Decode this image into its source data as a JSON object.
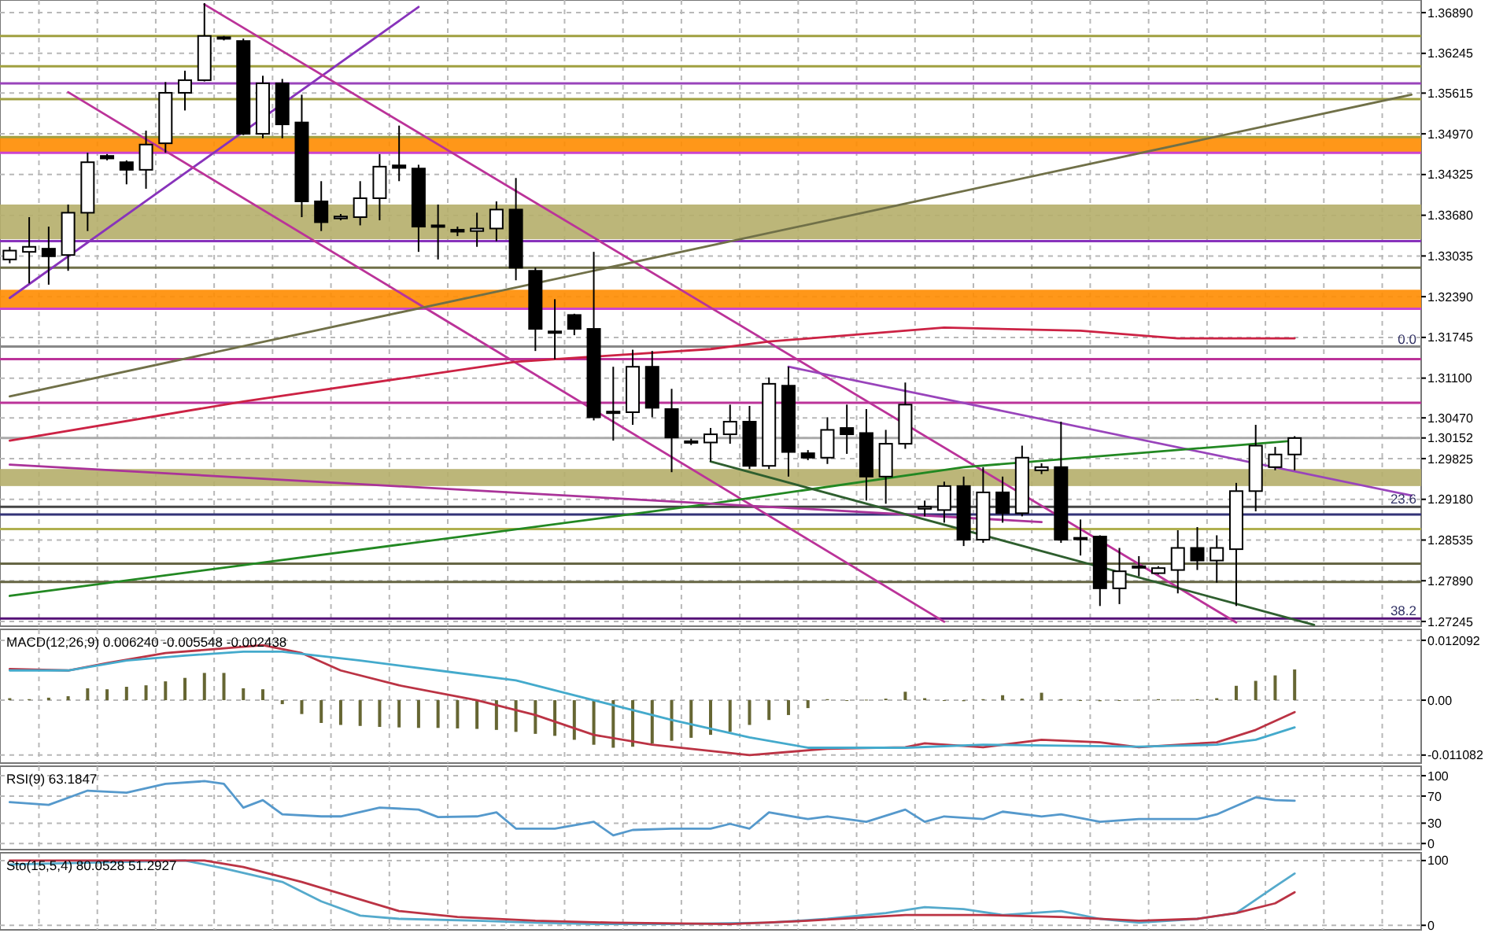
{
  "chart_data": [
    {
      "type": "candlestick",
      "categories": [
        null,
        null,
        null,
        null,
        null,
        null,
        null,
        null,
        null,
        null,
        null,
        null,
        null,
        null,
        null,
        null,
        null,
        null,
        null,
        null,
        null,
        null,
        null,
        null,
        null,
        null,
        null,
        null,
        null,
        null,
        null,
        null,
        null,
        null,
        null,
        null,
        null,
        null,
        null,
        null,
        null,
        null,
        null,
        null,
        null,
        null,
        null,
        null,
        null,
        null,
        null,
        null,
        null,
        null,
        null,
        null,
        null,
        null,
        null,
        null,
        null,
        null,
        null,
        null,
        null,
        null,
        null,
        null,
        null,
        null,
        null,
        null,
        null
      ],
      "ohlc": [
        [
          1.3298,
          1.3318,
          1.3292,
          1.3312
        ],
        [
          1.331,
          1.3365,
          1.326,
          1.3318
        ],
        [
          1.3315,
          1.335,
          1.3258,
          1.3303
        ],
        [
          1.3305,
          1.3385,
          1.328,
          1.3372
        ],
        [
          1.3372,
          1.3467,
          1.3343,
          1.3452
        ],
        [
          1.3462,
          1.3465,
          1.3455,
          1.3458
        ],
        [
          1.3452,
          1.3455,
          1.3417,
          1.344
        ],
        [
          1.344,
          1.3502,
          1.341,
          1.348
        ],
        [
          1.3482,
          1.3579,
          1.3467,
          1.3562
        ],
        [
          1.3562,
          1.3597,
          1.3534,
          1.3582
        ],
        [
          1.3582,
          1.3704,
          1.358,
          1.3652
        ],
        [
          1.365,
          1.3652,
          1.3645,
          1.3648
        ],
        [
          1.3644,
          1.3648,
          1.3495,
          1.3497
        ],
        [
          1.3497,
          1.3589,
          1.349,
          1.3577
        ],
        [
          1.3577,
          1.3584,
          1.349,
          1.3512
        ],
        [
          1.3515,
          1.3559,
          1.3365,
          1.339
        ],
        [
          1.339,
          1.3422,
          1.3343,
          1.3357
        ],
        [
          1.3363,
          1.337,
          1.336,
          1.3366
        ],
        [
          1.3365,
          1.3422,
          1.3352,
          1.3395
        ],
        [
          1.3395,
          1.3465,
          1.336,
          1.3445
        ],
        [
          1.3447,
          1.351,
          1.3422,
          1.3443
        ],
        [
          1.3442,
          1.3448,
          1.331,
          1.335
        ],
        [
          1.3352,
          1.3385,
          1.3298,
          1.335
        ],
        [
          1.3345,
          1.335,
          1.3335,
          1.3342
        ],
        [
          1.3343,
          1.3372,
          1.3318,
          1.3347
        ],
        [
          1.3347,
          1.339,
          1.3327,
          1.3377
        ],
        [
          1.3377,
          1.3427,
          1.3265,
          1.3285
        ],
        [
          1.328,
          1.3285,
          1.3153,
          1.3188
        ],
        [
          1.3184,
          1.3235,
          1.314,
          1.3182
        ],
        [
          1.321,
          1.3212,
          1.3178,
          1.3188
        ],
        [
          1.3188,
          1.331,
          1.3043,
          1.3048
        ],
        [
          1.3055,
          1.3128,
          1.3011,
          1.3057
        ],
        [
          1.3056,
          1.3155,
          1.3036,
          1.3128
        ],
        [
          1.3128,
          1.3153,
          1.3048,
          1.3063
        ],
        [
          1.3061,
          1.3093,
          1.2961,
          1.3016
        ],
        [
          1.3008,
          1.3014,
          1.3004,
          1.301
        ],
        [
          1.3008,
          1.3031,
          1.2978,
          1.3021
        ],
        [
          1.3021,
          1.3068,
          1.3006,
          1.3041
        ],
        [
          1.3041,
          1.3066,
          1.2966,
          1.2971
        ],
        [
          1.2971,
          1.3111,
          1.2966,
          1.3101
        ],
        [
          1.3098,
          1.3128,
          1.2954,
          1.2993
        ],
        [
          1.2991,
          1.2996,
          1.298,
          1.2984
        ],
        [
          1.2984,
          1.3048,
          1.2974,
          1.3028
        ],
        [
          1.3031,
          1.3068,
          1.299,
          1.3021
        ],
        [
          1.3023,
          1.3061,
          1.2916,
          1.2954
        ],
        [
          1.2954,
          1.3028,
          1.2911,
          1.3006
        ],
        [
          1.3006,
          1.3103,
          1.2998,
          1.3068
        ],
        [
          1.2903,
          1.2916,
          1.2891,
          1.2906
        ],
        [
          1.2901,
          1.2946,
          1.2881,
          1.2939
        ],
        [
          1.2939,
          1.2954,
          1.2844,
          1.2854
        ],
        [
          1.2854,
          1.2969,
          1.2849,
          1.2929
        ],
        [
          1.2929,
          1.2954,
          1.2881,
          1.2896
        ],
        [
          1.2896,
          1.3003,
          1.2891,
          1.2984
        ],
        [
          1.2964,
          1.2975,
          1.2958,
          1.2969
        ],
        [
          1.2969,
          1.3041,
          1.2849,
          1.2854
        ],
        [
          1.2855,
          1.2886,
          1.2829,
          1.2857
        ],
        [
          1.2859,
          1.2861,
          1.2749,
          1.2777
        ],
        [
          1.2777,
          1.2841,
          1.2752,
          1.2804
        ],
        [
          1.281,
          1.2828,
          1.2796,
          1.2812
        ],
        [
          1.2801,
          1.2812,
          1.2799,
          1.2809
        ],
        [
          1.2806,
          1.2869,
          1.2769,
          1.2841
        ],
        [
          1.2841,
          1.2874,
          1.2806,
          1.2821
        ],
        [
          1.2821,
          1.2861,
          1.2786,
          1.2841
        ],
        [
          1.2839,
          1.2944,
          1.2749,
          1.2931
        ],
        [
          1.2931,
          1.3036,
          1.2899,
          1.3003
        ],
        [
          1.2969,
          1.3001,
          1.2964,
          1.2989
        ],
        [
          1.2989,
          1.3018,
          1.2964,
          1.3015
        ],
        null,
        null,
        null,
        null,
        null,
        null
      ],
      "series": [
        {
          "type": "line",
          "color": "#8833bb",
          "values": [
            1.3237,
            null,
            null,
            null,
            null,
            null,
            null,
            null,
            null,
            null,
            null,
            null,
            null,
            null,
            null,
            null,
            null,
            null,
            null,
            null,
            null,
            1.3698,
            null,
            null,
            null,
            null,
            null,
            null,
            null,
            null,
            null,
            null,
            null,
            null,
            null,
            null,
            null,
            null,
            null,
            null,
            null,
            null,
            null,
            null,
            null,
            null,
            null,
            null,
            null,
            null,
            null,
            null,
            null,
            null,
            null,
            null,
            null,
            null,
            null,
            null,
            null,
            null,
            null,
            null,
            null,
            null,
            null,
            null,
            null,
            null,
            null,
            null,
            null
          ]
        },
        {
          "type": "line",
          "color": "#bb3399",
          "values": [
            null,
            null,
            null,
            null,
            null,
            null,
            null,
            null,
            null,
            null,
            1.3702,
            null,
            null,
            null,
            null,
            null,
            null,
            null,
            null,
            null,
            null,
            null,
            null,
            null,
            null,
            null,
            null,
            null,
            null,
            null,
            null,
            null,
            null,
            null,
            null,
            null,
            null,
            null,
            null,
            null,
            null,
            null,
            null,
            null,
            null,
            null,
            null,
            null,
            null,
            null,
            null,
            null,
            null,
            null,
            null,
            null,
            null,
            null,
            null,
            null,
            null,
            null,
            null,
            1.2723,
            null,
            null,
            null,
            null,
            null,
            null,
            null,
            null,
            null
          ]
        },
        {
          "type": "line",
          "color": "#bb3399",
          "values": [
            null,
            null,
            null,
            1.3563,
            null,
            null,
            null,
            null,
            null,
            null,
            null,
            null,
            null,
            null,
            null,
            null,
            null,
            null,
            null,
            null,
            null,
            null,
            null,
            null,
            null,
            null,
            null,
            null,
            null,
            null,
            null,
            null,
            null,
            null,
            null,
            null,
            null,
            null,
            null,
            null,
            null,
            null,
            null,
            null,
            null,
            null,
            null,
            null,
            1.2724,
            null,
            null,
            null,
            null,
            null,
            null,
            null,
            null,
            null,
            null,
            null,
            null,
            null,
            null,
            null,
            null,
            null,
            null,
            null,
            null,
            null,
            null,
            null,
            null
          ]
        },
        {
          "type": "line",
          "color": "#707048",
          "values": [
            1.3081,
            null,
            null,
            null,
            null,
            null,
            null,
            null,
            null,
            null,
            null,
            null,
            null,
            null,
            null,
            null,
            null,
            null,
            null,
            null,
            null,
            null,
            null,
            null,
            null,
            null,
            null,
            null,
            null,
            null,
            null,
            null,
            null,
            null,
            null,
            null,
            null,
            null,
            null,
            null,
            null,
            null,
            null,
            null,
            null,
            null,
            null,
            null,
            null,
            null,
            null,
            null,
            null,
            null,
            null,
            null,
            null,
            null,
            null,
            null,
            null,
            null,
            null,
            null,
            null,
            null,
            null,
            null,
            null,
            null,
            null,
            null,
            1.3559
          ]
        },
        {
          "type": "line",
          "color": "#9944bb",
          "values": [
            null,
            null,
            null,
            null,
            null,
            null,
            null,
            null,
            null,
            null,
            null,
            null,
            null,
            null,
            null,
            null,
            null,
            null,
            null,
            null,
            null,
            null,
            null,
            null,
            null,
            null,
            null,
            null,
            null,
            null,
            null,
            null,
            null,
            null,
            null,
            null,
            null,
            null,
            null,
            null,
            1.3128,
            null,
            null,
            null,
            null,
            null,
            null,
            null,
            null,
            null,
            null,
            null,
            null,
            null,
            null,
            null,
            null,
            null,
            null,
            null,
            null,
            null,
            null,
            null,
            null,
            null,
            null,
            null,
            null,
            null,
            null,
            null,
            1.2924
          ]
        },
        {
          "type": "line",
          "color": "#cc2244",
          "values": [
            1.3011,
            null,
            null,
            null,
            null,
            null,
            null,
            null,
            null,
            null,
            null,
            null,
            1.3073,
            null,
            null,
            null,
            null,
            null,
            null,
            null,
            null,
            null,
            null,
            null,
            null,
            null,
            1.3136,
            null,
            null,
            null,
            null,
            null,
            null,
            null,
            null,
            null,
            1.3156,
            null,
            null,
            1.3168,
            null,
            null,
            null,
            null,
            null,
            null,
            null,
            null,
            1.319,
            null,
            null,
            null,
            null,
            null,
            null,
            1.3185,
            null,
            null,
            null,
            null,
            1.3173,
            null,
            null,
            null,
            null,
            null,
            1.3173,
            null,
            null,
            null,
            null,
            null,
            null
          ]
        },
        {
          "type": "line",
          "color": "#228822",
          "values": [
            1.2765,
            null,
            null,
            null,
            null,
            null,
            null,
            null,
            null,
            null,
            null,
            null,
            null,
            null,
            null,
            null,
            null,
            null,
            null,
            null,
            null,
            null,
            null,
            null,
            null,
            null,
            null,
            null,
            null,
            null,
            null,
            null,
            null,
            null,
            null,
            null,
            1.2911,
            null,
            null,
            null,
            null,
            null,
            null,
            null,
            null,
            null,
            null,
            null,
            null,
            1.2969,
            null,
            null,
            null,
            null,
            null,
            null,
            null,
            null,
            null,
            null,
            null,
            null,
            null,
            null,
            null,
            null,
            1.3011,
            null,
            null,
            null,
            null,
            null,
            null
          ]
        },
        {
          "type": "line",
          "color": "#aa3399",
          "values": [
            1.2973,
            null,
            null,
            null,
            null,
            null,
            null,
            null,
            null,
            null,
            null,
            null,
            null,
            null,
            null,
            null,
            null,
            null,
            null,
            null,
            null,
            null,
            null,
            null,
            null,
            null,
            null,
            null,
            null,
            null,
            null,
            null,
            null,
            null,
            null,
            null,
            null,
            null,
            null,
            null,
            null,
            null,
            null,
            null,
            null,
            null,
            null,
            null,
            null,
            null,
            null,
            null,
            null,
            1.2882,
            null,
            null,
            null,
            null,
            null,
            null,
            null,
            null,
            null,
            null,
            null,
            null,
            null,
            null,
            null,
            null,
            null,
            null,
            null
          ]
        },
        {
          "type": "line",
          "color": "#2e5e2e",
          "values": [
            null,
            null,
            null,
            null,
            null,
            null,
            null,
            null,
            null,
            null,
            null,
            null,
            null,
            null,
            null,
            null,
            null,
            null,
            null,
            null,
            null,
            null,
            null,
            null,
            null,
            null,
            null,
            null,
            null,
            null,
            null,
            null,
            null,
            null,
            null,
            null,
            1.2978,
            null,
            null,
            null,
            null,
            null,
            null,
            null,
            null,
            null,
            null,
            null,
            null,
            null,
            null,
            null,
            null,
            null,
            null,
            null,
            null,
            null,
            null,
            null,
            null,
            null,
            null,
            null,
            null,
            null,
            null,
            1.2719,
            null,
            null,
            null,
            null,
            null
          ]
        }
      ],
      "bands": [
        {
          "axis": "y",
          "from": 1.3467,
          "to": 1.3492,
          "color": "#ff8c00"
        },
        {
          "axis": "y",
          "from": 1.333,
          "to": 1.3385,
          "color": "#b5ae6a"
        },
        {
          "axis": "y",
          "from": 1.3218,
          "to": 1.325,
          "color": "#ff8c00"
        },
        {
          "axis": "y",
          "from": 1.2939,
          "to": 1.2966,
          "color": "#b5ae6a"
        }
      ],
      "ref_lines": [
        {
          "axis": "y",
          "value": 1.3652,
          "color": "#a0a040"
        },
        {
          "axis": "y",
          "value": 1.3604,
          "color": "#a0a040"
        },
        {
          "axis": "y",
          "value": 1.3577,
          "color": "#9944bb"
        },
        {
          "axis": "y",
          "value": 1.3552,
          "color": "#a0a040"
        },
        {
          "axis": "y",
          "value": 1.3492,
          "color": "#a0a040"
        },
        {
          "axis": "y",
          "value": 1.3467,
          "color": "#cc44cc"
        },
        {
          "axis": "y",
          "value": 1.3327,
          "color": "#8833bb"
        },
        {
          "axis": "y",
          "value": 1.3285,
          "color": "#707048"
        },
        {
          "axis": "y",
          "value": 1.322,
          "color": "#cc44cc"
        },
        {
          "axis": "y",
          "value": 1.316,
          "color": "#888888"
        },
        {
          "axis": "y",
          "value": 1.314,
          "color": "#bb3399"
        },
        {
          "axis": "y",
          "value": 1.3071,
          "color": "#bb3399"
        },
        {
          "axis": "y",
          "value": 1.30152,
          "color": "#aaaaaa"
        },
        {
          "axis": "y",
          "value": 1.2906,
          "color": "#444444"
        },
        {
          "axis": "y",
          "value": 1.2894,
          "color": "#333377"
        },
        {
          "axis": "y",
          "value": 1.2871,
          "color": "#b0b050"
        },
        {
          "axis": "y",
          "value": 1.2816,
          "color": "#666644"
        },
        {
          "axis": "y",
          "value": 1.2787,
          "color": "#666644"
        },
        {
          "axis": "y",
          "value": 1.2729,
          "color": "#551177"
        }
      ],
      "annotations": [
        {
          "text": "0.0",
          "y": 1.316
        },
        {
          "text": "23.6",
          "y": 1.2906
        },
        {
          "text": "38.2",
          "y": 1.2729
        }
      ],
      "ylim": [
        1.2717,
        1.3709
      ],
      "yticks": [
        {
          "value": 1.3689,
          "label": "1.36890"
        },
        {
          "value": 1.36245,
          "label": "1.36245"
        },
        {
          "value": 1.35615,
          "label": "1.35615"
        },
        {
          "value": 1.3497,
          "label": "1.34970"
        },
        {
          "value": 1.34325,
          "label": "1.34325"
        },
        {
          "value": 1.3368,
          "label": "1.33680"
        },
        {
          "value": 1.33035,
          "label": "1.33035"
        },
        {
          "value": 1.3239,
          "label": "1.32390"
        },
        {
          "value": 1.31745,
          "label": "1.31745"
        },
        {
          "value": 1.311,
          "label": "1.31100"
        },
        {
          "value": 1.3047,
          "label": "1.30470"
        },
        1.30152,
        {
          "value": 1.29825,
          "label": "1.29825"
        },
        {
          "value": 1.2918,
          "label": "1.29180"
        },
        {
          "value": 1.28535,
          "label": "1.28535"
        },
        {
          "value": 1.2789,
          "label": "1.27890"
        },
        {
          "value": 1.27245,
          "label": "1.27245"
        }
      ],
      "grid": true,
      "tick_labels": "y"
    },
    {
      "type": "bar",
      "title": "MACD(12,26,9) 0.006240 -0.005548 -0.002438",
      "categories": [
        null,
        null,
        null,
        null,
        null,
        null,
        null,
        null,
        null,
        null,
        null,
        null,
        null,
        null,
        null,
        null,
        null,
        null,
        null,
        null,
        null,
        null,
        null,
        null,
        null,
        null,
        null,
        null,
        null,
        null,
        null,
        null,
        null,
        null,
        null,
        null,
        null,
        null,
        null,
        null,
        null,
        null,
        null,
        null,
        null,
        null,
        null,
        null,
        null,
        null,
        null,
        null,
        null,
        null,
        null,
        null,
        null,
        null,
        null,
        null,
        null,
        null,
        null,
        null,
        null,
        null,
        null,
        null,
        null,
        null,
        null,
        null,
        null
      ],
      "series": [
        {
          "type": "bar",
          "color": "#666633",
          "values": [
            0.0004,
            0.0002,
            0.0005,
            0.0008,
            0.0024,
            0.0022,
            0.0027,
            0.003,
            0.0038,
            0.0045,
            0.0055,
            0.0055,
            0.0024,
            0.0022,
            -0.0008,
            -0.0028,
            -0.0046,
            -0.005,
            -0.0052,
            -0.0054,
            -0.0055,
            -0.0056,
            -0.0056,
            -0.0057,
            -0.0058,
            -0.006,
            -0.0064,
            -0.0068,
            -0.0072,
            -0.008,
            -0.009,
            -0.0096,
            -0.0094,
            -0.0088,
            -0.0082,
            -0.0076,
            -0.007,
            -0.0064,
            -0.005,
            -0.004,
            -0.003,
            -0.0016,
            0.0002,
            -0.0001,
            0.0001,
            0.0003,
            0.0017,
            0.0004,
            0.0,
            -0.0002,
            0.0002,
            0.001,
            0.0003,
            0.0015,
            0.0002,
            -0.0001,
            -0.0002,
            -0.0001,
            0.0001,
            0.0002,
            0.0001,
            0.0002,
            0.0004,
            0.0029,
            0.0039,
            0.005,
            0.0062,
            null,
            null,
            null,
            null,
            null,
            null
          ]
        },
        {
          "type": "line",
          "color": "#bb3344",
          "values": [
            0.0063,
            null,
            null,
            0.006,
            null,
            0.0075,
            null,
            null,
            0.0095,
            null,
            null,
            null,
            null,
            0.0111,
            null,
            0.0095,
            null,
            0.006,
            null,
            null,
            0.003,
            null,
            null,
            null,
            0.0,
            null,
            null,
            -0.003,
            null,
            null,
            -0.007,
            null,
            null,
            -0.009,
            null,
            null,
            null,
            null,
            -0.0111,
            null,
            null,
            null,
            -0.0098,
            null,
            null,
            null,
            -0.0095,
            -0.0087,
            null,
            null,
            -0.0095,
            null,
            null,
            -0.008,
            null,
            null,
            -0.0085,
            null,
            -0.0095,
            null,
            null,
            null,
            -0.0085,
            null,
            -0.006,
            null,
            -0.0024,
            null,
            null,
            null,
            null,
            null,
            null
          ]
        },
        {
          "type": "line",
          "color": "#44aacc",
          "values": [
            0.006,
            null,
            null,
            0.006,
            null,
            null,
            0.008,
            null,
            null,
            0.009,
            null,
            null,
            0.0098,
            null,
            0.0098,
            null,
            null,
            null,
            0.008,
            null,
            null,
            null,
            0.006,
            null,
            null,
            null,
            0.004,
            null,
            null,
            null,
            0.0,
            null,
            null,
            null,
            -0.004,
            null,
            null,
            null,
            -0.0075,
            null,
            null,
            -0.0096,
            null,
            null,
            null,
            null,
            -0.0096,
            null,
            null,
            null,
            -0.009,
            null,
            null,
            null,
            -0.0092,
            null,
            null,
            null,
            -0.0094,
            null,
            null,
            null,
            -0.009,
            null,
            -0.008,
            null,
            -0.0055,
            null,
            null,
            null,
            null,
            null,
            null
          ]
        }
      ],
      "ylim": [
        -0.0127,
        0.0143
      ],
      "yticks": [
        0.012092,
        {
          "value": 0,
          "label": "0.00"
        },
        -0.011082
      ],
      "grid": true,
      "tick_labels": "y"
    },
    {
      "type": "line",
      "title": "RSI(9) 63.1847",
      "categories": [
        null,
        null,
        null,
        null,
        null,
        null,
        null,
        null,
        null,
        null,
        null,
        null,
        null,
        null,
        null,
        null,
        null,
        null,
        null,
        null,
        null,
        null,
        null,
        null,
        null,
        null,
        null,
        null,
        null,
        null,
        null,
        null,
        null,
        null,
        null,
        null,
        null,
        null,
        null,
        null,
        null,
        null,
        null,
        null,
        null,
        null,
        null,
        null,
        null,
        null,
        null,
        null,
        null,
        null,
        null,
        null,
        null,
        null,
        null,
        null,
        null,
        null,
        null,
        null,
        null,
        null,
        null,
        null,
        null,
        null,
        null,
        null,
        null
      ],
      "series": [
        {
          "color": "#5599cc",
          "values": [
            61,
            null,
            57,
            null,
            78,
            null,
            75,
            null,
            88,
            null,
            92,
            88,
            53,
            64,
            43,
            null,
            40,
            40,
            null,
            53,
            null,
            50,
            39,
            null,
            40,
            46,
            22,
            null,
            22,
            null,
            32,
            12,
            20,
            null,
            22,
            null,
            22,
            29,
            22,
            46,
            null,
            36,
            40,
            null,
            32,
            null,
            50,
            32,
            40,
            null,
            36,
            47,
            null,
            40,
            43,
            null,
            32,
            null,
            36,
            null,
            null,
            36,
            43,
            null,
            68,
            64,
            63,
            null,
            null,
            null,
            null,
            null,
            null
          ]
        }
      ],
      "ylim": [
        -9,
        114
      ],
      "yticks": [
        100,
        70,
        30,
        0
      ],
      "grid": true,
      "tick_labels": "y"
    },
    {
      "type": "line",
      "title": "Sto(15,5,4) 80.0528 51.2927",
      "categories": [
        null,
        null,
        null,
        null,
        null,
        null,
        null,
        null,
        null,
        null,
        null,
        null,
        null,
        null,
        null,
        null,
        null,
        null,
        null,
        null,
        null,
        null,
        null,
        null,
        null,
        null,
        null,
        null,
        null,
        null,
        null,
        null,
        null,
        null,
        null,
        null,
        null,
        null,
        null,
        null,
        null,
        null,
        null,
        null,
        null,
        null,
        null,
        null,
        null,
        null,
        null,
        null,
        null,
        null,
        null,
        null,
        null,
        null,
        null,
        null,
        null,
        null,
        null,
        null,
        null,
        null,
        null,
        null,
        null,
        null,
        null,
        null,
        null
      ],
      "series": [
        {
          "color": "#55aacc",
          "values": [
            94,
            null,
            null,
            null,
            null,
            null,
            null,
            null,
            null,
            100,
            null,
            88,
            null,
            null,
            67,
            null,
            37,
            null,
            15,
            null,
            10,
            null,
            null,
            null,
            7,
            null,
            null,
            4,
            null,
            null,
            2,
            null,
            null,
            null,
            2,
            null,
            null,
            null,
            null,
            4,
            null,
            null,
            10,
            null,
            null,
            19,
            null,
            28,
            null,
            25,
            null,
            16,
            null,
            null,
            22,
            null,
            10,
            null,
            4,
            null,
            null,
            10,
            null,
            19,
            null,
            60,
            80,
            null,
            null,
            null,
            null,
            null,
            null
          ]
        },
        {
          "color": "#bb3344",
          "values": [
            100,
            null,
            null,
            null,
            null,
            null,
            null,
            null,
            null,
            null,
            100,
            null,
            90,
            null,
            null,
            67,
            null,
            null,
            40,
            null,
            22,
            null,
            null,
            13,
            null,
            null,
            null,
            7,
            null,
            null,
            null,
            4,
            null,
            null,
            null,
            null,
            null,
            2,
            null,
            null,
            null,
            7,
            null,
            null,
            null,
            null,
            16,
            null,
            null,
            null,
            16,
            null,
            null,
            null,
            13,
            null,
            null,
            null,
            7,
            null,
            null,
            10,
            null,
            19,
            null,
            34,
            51,
            null,
            null,
            null,
            null,
            null,
            null
          ]
        }
      ],
      "ylim": [
        -7,
        112
      ],
      "yticks": [
        100,
        0
      ],
      "grid": true,
      "tick_labels": "y"
    }
  ]
}
